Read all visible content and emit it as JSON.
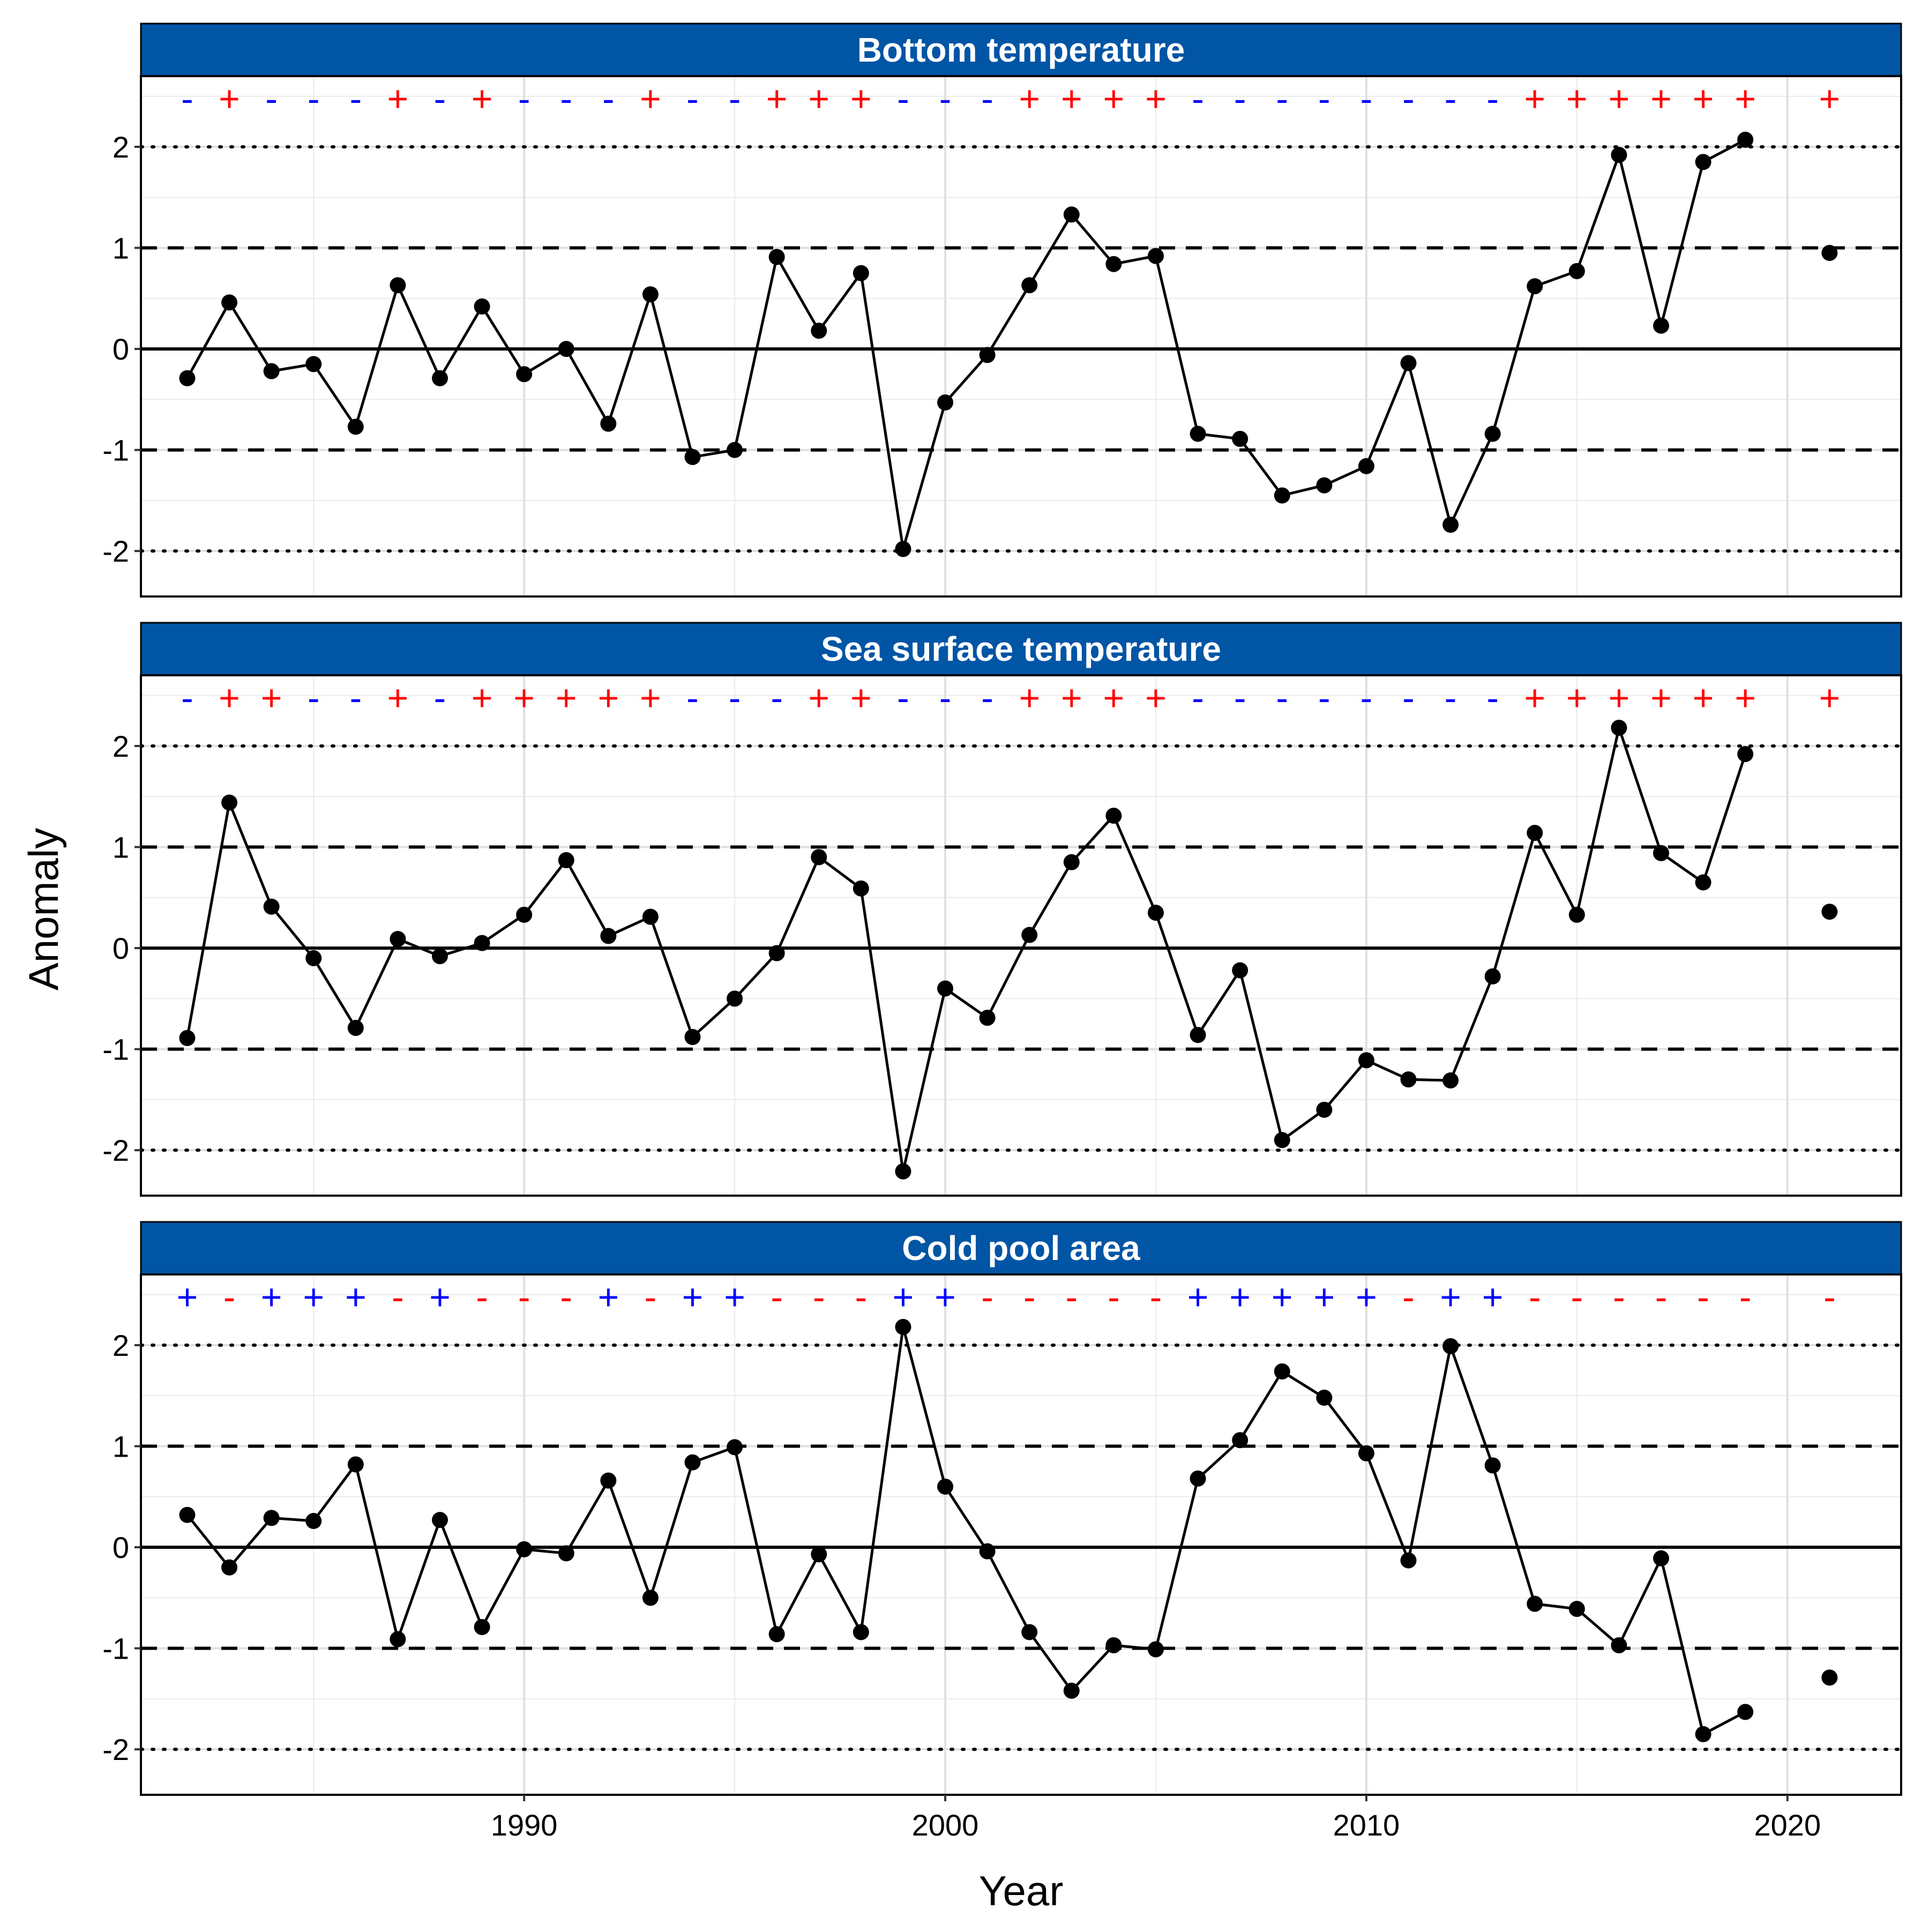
{
  "chart_data": {
    "type": "line",
    "ylabel": "Anomaly",
    "xlabel": "Year",
    "ylim": [
      -2.45,
      2.7
    ],
    "xlim": [
      1980.9,
      2022.7
    ],
    "x_ticks": [
      1990,
      2000,
      2010,
      2020
    ],
    "y_ticks": [
      -2,
      -1,
      0,
      1,
      2
    ],
    "reference_lines": {
      "solid": [
        0
      ],
      "dashed": [
        -1,
        1
      ],
      "dotted": [
        -2,
        2
      ]
    },
    "grid": true,
    "colors": {
      "strip": "#0055a5",
      "strip_text": "#ffffff",
      "line": "#000000",
      "positive_sign_warm": "#ff0000",
      "negative_sign_warm": "#0000ff"
    },
    "panels": [
      {
        "title": "Bottom temperature",
        "sign_colors": {
          "+": "#ff0000",
          "-": "#0000ff"
        },
        "years": [
          1982,
          1983,
          1984,
          1985,
          1986,
          1987,
          1988,
          1989,
          1990,
          1991,
          1992,
          1993,
          1994,
          1995,
          1996,
          1997,
          1998,
          1999,
          2000,
          2001,
          2002,
          2003,
          2004,
          2005,
          2006,
          2007,
          2008,
          2009,
          2010,
          2011,
          2012,
          2013,
          2014,
          2015,
          2016,
          2017,
          2018,
          2019,
          2021
        ],
        "values": [
          -0.29,
          0.46,
          -0.22,
          -0.15,
          -0.77,
          0.63,
          -0.29,
          0.42,
          -0.25,
          0.0,
          -0.74,
          0.54,
          -1.07,
          -1.0,
          0.91,
          0.18,
          0.75,
          -1.98,
          -0.53,
          -0.06,
          0.63,
          1.33,
          0.84,
          0.92,
          -0.84,
          -0.89,
          -1.45,
          -1.35,
          -1.16,
          -0.14,
          -1.74,
          -0.84,
          0.62,
          0.77,
          1.92,
          0.23,
          1.85,
          2.07,
          0.95
        ],
        "signs": [
          "-",
          "+",
          "-",
          "-",
          "-",
          "+",
          "-",
          "+",
          "-",
          "-",
          "-",
          "+",
          "-",
          "-",
          "+",
          "+",
          "+",
          "-",
          "-",
          "-",
          "+",
          "+",
          "+",
          "+",
          "-",
          "-",
          "-",
          "-",
          "-",
          "-",
          "-",
          "-",
          "+",
          "+",
          "+",
          "+",
          "+",
          "+",
          "+"
        ]
      },
      {
        "title": "Sea surface temperature",
        "sign_colors": {
          "+": "#ff0000",
          "-": "#0000ff"
        },
        "years": [
          1982,
          1983,
          1984,
          1985,
          1986,
          1987,
          1988,
          1989,
          1990,
          1991,
          1992,
          1993,
          1994,
          1995,
          1996,
          1997,
          1998,
          1999,
          2000,
          2001,
          2002,
          2003,
          2004,
          2005,
          2006,
          2007,
          2008,
          2009,
          2010,
          2011,
          2012,
          2013,
          2014,
          2015,
          2016,
          2017,
          2018,
          2019,
          2021
        ],
        "values": [
          -0.89,
          1.44,
          0.41,
          -0.1,
          -0.79,
          0.09,
          -0.08,
          0.05,
          0.33,
          0.87,
          0.12,
          0.31,
          -0.88,
          -0.5,
          -0.05,
          0.9,
          0.59,
          -2.21,
          -0.4,
          -0.69,
          0.13,
          0.85,
          1.31,
          0.35,
          -0.86,
          -0.22,
          -1.9,
          -1.6,
          -1.11,
          -1.3,
          -1.31,
          -0.28,
          1.14,
          0.33,
          2.18,
          0.94,
          0.65,
          1.92,
          0.36
        ],
        "signs": [
          "-",
          "+",
          "+",
          "-",
          "-",
          "+",
          "-",
          "+",
          "+",
          "+",
          "+",
          "+",
          "-",
          "-",
          "-",
          "+",
          "+",
          "-",
          "-",
          "-",
          "+",
          "+",
          "+",
          "+",
          "-",
          "-",
          "-",
          "-",
          "-",
          "-",
          "-",
          "-",
          "+",
          "+",
          "+",
          "+",
          "+",
          "+",
          "+"
        ]
      },
      {
        "title": "Cold pool area",
        "sign_colors": {
          "+": "#0000ff",
          "-": "#ff0000"
        },
        "years": [
          1982,
          1983,
          1984,
          1985,
          1986,
          1987,
          1988,
          1989,
          1990,
          1991,
          1992,
          1993,
          1994,
          1995,
          1996,
          1997,
          1998,
          1999,
          2000,
          2001,
          2002,
          2003,
          2004,
          2005,
          2006,
          2007,
          2008,
          2009,
          2010,
          2011,
          2012,
          2013,
          2014,
          2015,
          2016,
          2017,
          2018,
          2019,
          2021
        ],
        "values": [
          0.32,
          -0.2,
          0.29,
          0.26,
          0.82,
          -0.91,
          0.27,
          -0.79,
          -0.02,
          -0.06,
          0.66,
          -0.5,
          0.84,
          0.99,
          -0.86,
          -0.07,
          -0.84,
          2.18,
          0.6,
          -0.04,
          -0.84,
          -1.42,
          -0.97,
          -1.01,
          0.68,
          1.06,
          1.74,
          1.48,
          0.93,
          -0.13,
          1.99,
          0.81,
          -0.56,
          -0.61,
          -0.97,
          -0.11,
          -1.85,
          -1.63,
          -1.29
        ],
        "signs": [
          "+",
          "-",
          "+",
          "+",
          "+",
          "-",
          "+",
          "-",
          "-",
          "-",
          "+",
          "-",
          "+",
          "+",
          "-",
          "-",
          "-",
          "+",
          "+",
          "-",
          "-",
          "-",
          "-",
          "-",
          "+",
          "+",
          "+",
          "+",
          "+",
          "-",
          "+",
          "+",
          "-",
          "-",
          "-",
          "-",
          "-",
          "-",
          "-"
        ]
      }
    ]
  }
}
